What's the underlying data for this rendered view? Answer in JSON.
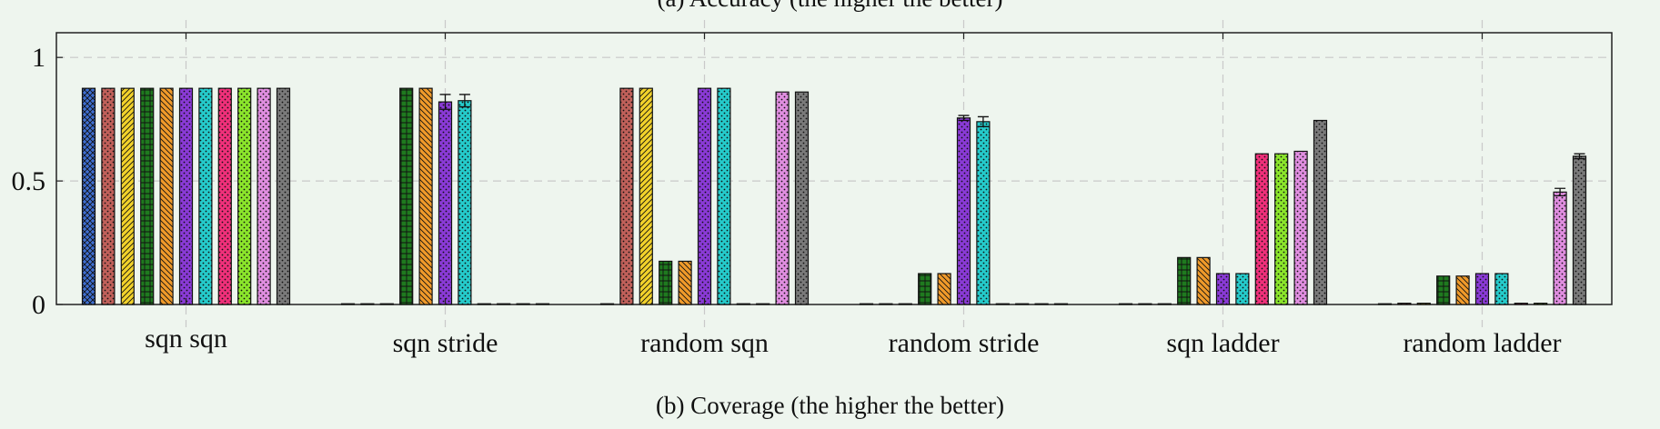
{
  "top_caption": "(a) Accuracy (the higher the better)",
  "bottom_caption": "(b) Coverage (the higher the better)",
  "chart_data": {
    "type": "bar",
    "title": "",
    "xlabel": "",
    "ylabel": "",
    "ylim": [
      0,
      1.1
    ],
    "yticks": [
      0,
      0.5,
      1
    ],
    "ytick_labels": [
      "0",
      "0.5",
      "1"
    ],
    "grid": true,
    "categories": [
      "sqn sqn",
      "sqn stride",
      "random sqn",
      "random stride",
      "sqn ladder",
      "random ladder"
    ],
    "series": [
      {
        "color": "#3f6fd1",
        "pattern": "crosshatch",
        "values": [
          0.875,
          0,
          0,
          0,
          0,
          0
        ]
      },
      {
        "color": "#c0605a",
        "pattern": "dots",
        "values": [
          0.875,
          0,
          0.875,
          0,
          0,
          0.005
        ]
      },
      {
        "color": "#f2d22b",
        "pattern": "north-east-lines",
        "values": [
          0.875,
          0,
          0.875,
          0,
          0,
          0.005
        ]
      },
      {
        "color": "#1f7a1f",
        "pattern": "grid",
        "values": [
          0.875,
          0.875,
          0.175,
          0.125,
          0.19,
          0.115
        ]
      },
      {
        "color": "#f09a2a",
        "pattern": "north-west-lines",
        "values": [
          0.875,
          0.875,
          0.175,
          0.125,
          0.19,
          0.115
        ]
      },
      {
        "color": "#8a3ad6",
        "pattern": "dots",
        "values": [
          0.875,
          0.82,
          0.875,
          0.755,
          0.125,
          0.125
        ],
        "errors": [
          0,
          0.03,
          0,
          0.01,
          0,
          0
        ]
      },
      {
        "color": "#25cbcb",
        "pattern": "dots",
        "values": [
          0.875,
          0.825,
          0.875,
          0.74,
          0.125,
          0.125
        ],
        "errors": [
          0,
          0.025,
          0,
          0.02,
          0,
          0
        ]
      },
      {
        "color": "#f0307a",
        "pattern": "dots",
        "values": [
          0.875,
          0,
          0,
          0,
          0.61,
          0.005
        ]
      },
      {
        "color": "#8be62b",
        "pattern": "dots",
        "values": [
          0.875,
          0,
          0,
          0,
          0.61,
          0.005
        ]
      },
      {
        "color": "#e08ee0",
        "pattern": "dots",
        "values": [
          0.875,
          0,
          0.86,
          0,
          0.62,
          0.455
        ],
        "errors": [
          0,
          0,
          0,
          0,
          0,
          0.015
        ]
      },
      {
        "color": "#7a7a7a",
        "pattern": "dots",
        "values": [
          0.875,
          0,
          0.86,
          0,
          0.745,
          0.6
        ],
        "errors": [
          0,
          0,
          0,
          0,
          0,
          0.01
        ]
      }
    ]
  }
}
